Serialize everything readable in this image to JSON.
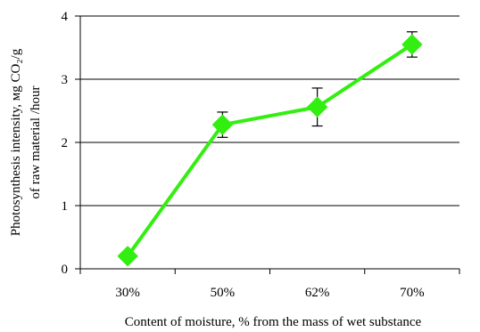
{
  "chart_data": {
    "type": "line",
    "categories": [
      "30%",
      "50%",
      "62%",
      "70%"
    ],
    "series": [
      {
        "values": [
          0.2,
          2.28,
          2.56,
          3.55
        ],
        "error": [
          0.0,
          0.2,
          0.3,
          0.2
        ],
        "color": "#33ee11",
        "marker": "diamond"
      }
    ],
    "xlabel": "Content of moisture, % from the mass of wet substance",
    "ylabel_line1": "Photosynthesis intensity, мg CO₂/g",
    "ylabel_line2": "of raw material /hour",
    "ylim": [
      0,
      4
    ],
    "yticks": [
      "0",
      "1",
      "2",
      "3",
      "4"
    ],
    "grid": true,
    "legend": "none"
  }
}
